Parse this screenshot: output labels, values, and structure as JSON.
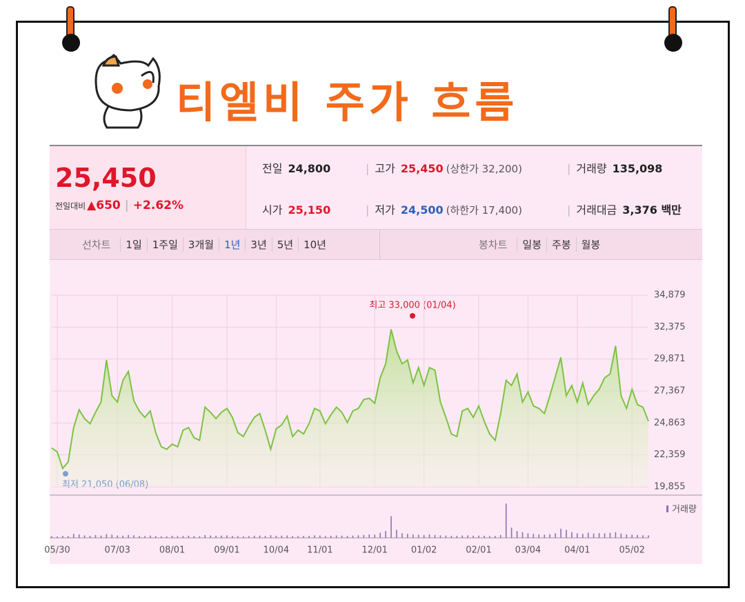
{
  "title": "티엘비 주가 흐름",
  "quote": {
    "price": "25,450",
    "change_label": "전일대비",
    "change": "▲650",
    "change_pct": "+2.62%"
  },
  "stats": [
    {
      "label": "전일",
      "value": "24,800"
    },
    {
      "label": "고가",
      "value": "25,450",
      "note": "(상한가 32,200)"
    },
    {
      "label": "거래량",
      "value": "135,098"
    },
    {
      "label": "시가",
      "value": "25,150"
    },
    {
      "label": "저가",
      "value": "24,500",
      "note": "(하한가 17,400)"
    },
    {
      "label": "거래대금",
      "value": "3,376 백만"
    }
  ],
  "tabs": {
    "line_label": "선차트",
    "line": [
      "1일",
      "1주일",
      "3개월",
      "1년",
      "3년",
      "5년",
      "10년"
    ],
    "candle_label": "봉차트",
    "candle": [
      "일봉",
      "주봉",
      "월봉"
    ]
  },
  "chart_data": {
    "type": "line",
    "color": "#7cc242",
    "annotations": [
      "최고 33,000 (01/04)",
      "최저 21,050 (06/08)"
    ],
    "categories": [
      null,
      "05/30",
      null,
      null,
      null,
      null,
      null,
      null,
      null,
      null,
      null,
      null,
      "07/03",
      null,
      null,
      null,
      null,
      null,
      null,
      null,
      null,
      null,
      "08/01",
      null,
      null,
      null,
      null,
      null,
      null,
      null,
      null,
      null,
      "09/01",
      null,
      null,
      null,
      null,
      null,
      null,
      null,
      null,
      "10/04",
      null,
      null,
      null,
      null,
      null,
      null,
      null,
      "11/01",
      null,
      null,
      null,
      null,
      null,
      null,
      null,
      null,
      null,
      "12/01",
      null,
      null,
      null,
      null,
      null,
      null,
      null,
      null,
      "01/02",
      null,
      null,
      null,
      null,
      null,
      null,
      null,
      null,
      null,
      "02/01",
      null,
      null,
      null,
      null,
      null,
      null,
      null,
      null,
      "03/04",
      null,
      null,
      null,
      null,
      null,
      null,
      null,
      null,
      "04/01",
      null,
      null,
      null,
      null,
      null,
      null,
      null,
      null,
      null,
      "05/02",
      null,
      null,
      null
    ],
    "values": [
      22900,
      22600,
      21300,
      21800,
      24500,
      25900,
      25200,
      24800,
      25700,
      26500,
      29800,
      27000,
      26500,
      28200,
      28900,
      26600,
      25800,
      25300,
      25800,
      24100,
      23000,
      22800,
      23200,
      23000,
      24300,
      24500,
      23700,
      23500,
      26100,
      25700,
      25200,
      25700,
      26000,
      25300,
      24100,
      23800,
      24600,
      25300,
      25600,
      24300,
      22800,
      24400,
      24700,
      25400,
      23800,
      24300,
      24000,
      24800,
      26000,
      25800,
      24800,
      25500,
      26100,
      25700,
      24900,
      25800,
      26000,
      26700,
      26800,
      26400,
      28400,
      29500,
      32200,
      30500,
      29500,
      29800,
      28000,
      29200,
      27800,
      29200,
      29000,
      26500,
      25300,
      24000,
      23800,
      25800,
      26000,
      25300,
      26200,
      25000,
      24000,
      23500,
      25600,
      28200,
      27800,
      28700,
      26500,
      27300,
      26200,
      26000,
      25600,
      27000,
      28500,
      30000,
      27000,
      27800,
      26500,
      28000,
      26300,
      27000,
      27500,
      28400,
      28700,
      30900,
      27000,
      26000,
      27500,
      26300,
      26100,
      25000
    ],
    "ylim": [
      19855,
      34879
    ],
    "yticks": [
      {
        "value": 19855,
        "label": "19,855"
      },
      {
        "value": 22359,
        "label": "22,359"
      },
      {
        "value": 24863,
        "label": "24,863"
      },
      {
        "value": 27367,
        "label": "27,367"
      },
      {
        "value": 29871,
        "label": "29,871"
      },
      {
        "value": 32375,
        "label": "32,375"
      },
      {
        "value": 34879,
        "label": "34,879"
      }
    ],
    "grid": true,
    "volume": {
      "type": "bar",
      "name": "거래량",
      "color": "#8a6fb5",
      "ylim": [
        0,
        3500000
      ],
      "values": [
        150000,
        120000,
        180000,
        160000,
        350000,
        300000,
        220000,
        180000,
        250000,
        200000,
        320000,
        280000,
        210000,
        190000,
        260000,
        230000,
        170000,
        150000,
        200000,
        160000,
        140000,
        130000,
        180000,
        150000,
        170000,
        190000,
        160000,
        140000,
        250000,
        210000,
        180000,
        200000,
        220000,
        170000,
        150000,
        140000,
        160000,
        190000,
        200000,
        170000,
        230000,
        180000,
        190000,
        210000,
        160000,
        150000,
        170000,
        180000,
        220000,
        200000,
        160000,
        180000,
        210000,
        190000,
        170000,
        200000,
        230000,
        260000,
        300000,
        280000,
        450000,
        600000,
        1900000,
        700000,
        400000,
        350000,
        300000,
        280000,
        250000,
        300000,
        260000,
        220000,
        200000,
        180000,
        170000,
        210000,
        220000,
        190000,
        200000,
        180000,
        160000,
        170000,
        250000,
        3000000,
        900000,
        600000,
        500000,
        400000,
        350000,
        300000,
        280000,
        320000,
        400000,
        800000,
        700000,
        500000,
        400000,
        350000,
        450000,
        380000,
        420000,
        400000,
        450000,
        500000,
        380000,
        300000,
        280000,
        250000,
        230000,
        220000
      ]
    }
  }
}
